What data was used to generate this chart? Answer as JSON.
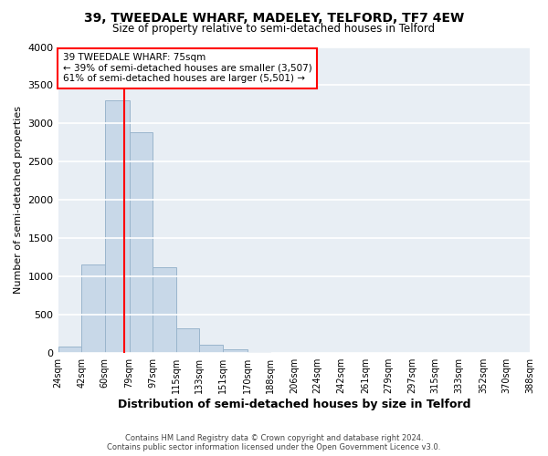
{
  "title": "39, TWEEDALE WHARF, MADELEY, TELFORD, TF7 4EW",
  "subtitle": "Size of property relative to semi-detached houses in Telford",
  "xlabel": "Distribution of semi-detached houses by size in Telford",
  "ylabel": "Number of semi-detached properties",
  "bar_color": "#c8d8e8",
  "bar_edgecolor": "#9ab5cc",
  "bins": [
    24,
    42,
    60,
    79,
    97,
    115,
    133,
    151,
    170,
    188,
    206,
    224,
    242,
    261,
    279,
    297,
    315,
    333,
    352,
    370,
    388
  ],
  "bin_labels": [
    "24sqm",
    "42sqm",
    "60sqm",
    "79sqm",
    "97sqm",
    "115sqm",
    "133sqm",
    "151sqm",
    "170sqm",
    "188sqm",
    "206sqm",
    "224sqm",
    "242sqm",
    "261sqm",
    "279sqm",
    "297sqm",
    "315sqm",
    "333sqm",
    "352sqm",
    "370sqm",
    "388sqm"
  ],
  "counts": [
    80,
    1160,
    3300,
    2880,
    1120,
    330,
    110,
    55,
    20,
    5,
    2,
    1,
    0,
    0,
    0,
    0,
    0,
    0,
    0,
    0
  ],
  "ylim": [
    0,
    4000
  ],
  "yticks": [
    0,
    500,
    1000,
    1500,
    2000,
    2500,
    3000,
    3500,
    4000
  ],
  "property_line_x": 75,
  "annotation_title": "39 TWEEDALE WHARF: 75sqm",
  "annotation_line1": "← 39% of semi-detached houses are smaller (3,507)",
  "annotation_line2": "61% of semi-detached houses are larger (5,501) →",
  "footer1": "Contains HM Land Registry data © Crown copyright and database right 2024.",
  "footer2": "Contains public sector information licensed under the Open Government Licence v3.0.",
  "background_color": "#ffffff",
  "plot_bg_color": "#e8eef4",
  "grid_color": "#ffffff"
}
